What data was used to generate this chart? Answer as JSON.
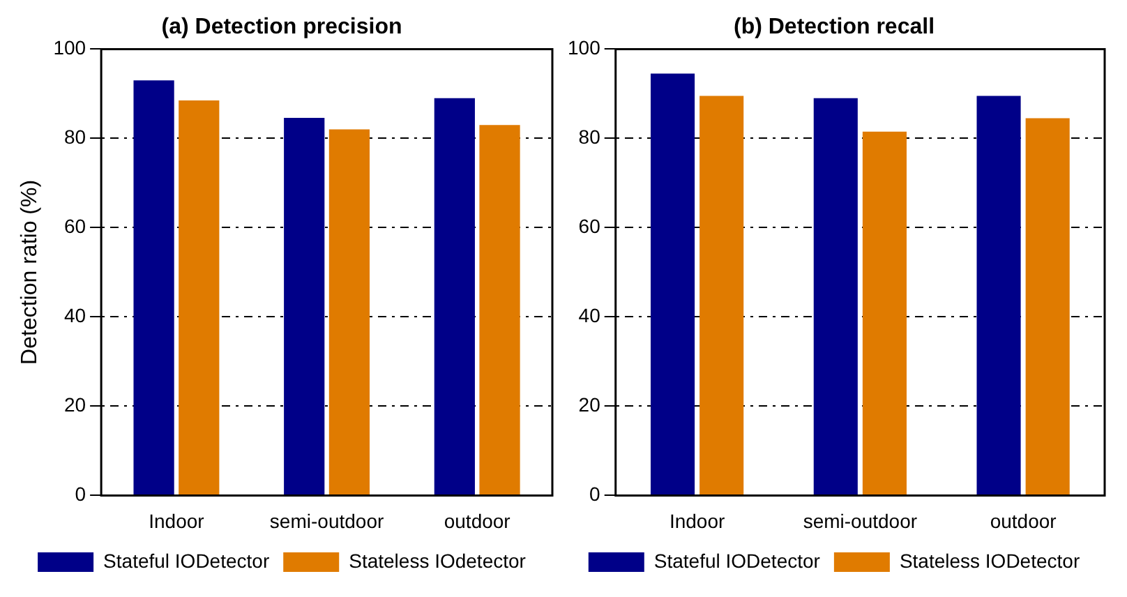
{
  "chart_data": [
    {
      "type": "bar",
      "title": "(a) Detection precision",
      "ylabel": "Detection ratio (%)",
      "categories": [
        "Indoor",
        "semi-outdoor",
        "outdoor"
      ],
      "series": [
        {
          "name": "Stateful IODetector",
          "color": "#000088",
          "values": [
            93,
            84.6,
            89
          ]
        },
        {
          "name": "Stateless IOdetector",
          "color": "#e07b00",
          "values": [
            88.5,
            82,
            83
          ]
        }
      ],
      "ylim": [
        0,
        100
      ],
      "yticks": [
        0,
        20,
        40,
        60,
        80,
        100
      ],
      "grid": "y",
      "legend": "bottom"
    },
    {
      "type": "bar",
      "title": "(b) Detection recall",
      "categories": [
        "Indoor",
        "semi-outdoor",
        "outdoor"
      ],
      "series": [
        {
          "name": "Stateful IODetector",
          "color": "#000088",
          "values": [
            94.5,
            89,
            89.5
          ]
        },
        {
          "name": "Stateless IODetector",
          "color": "#e07b00",
          "values": [
            89.5,
            81.5,
            84.5
          ]
        }
      ],
      "ylim": [
        0,
        100
      ],
      "yticks": [
        0,
        20,
        40,
        60,
        80,
        100
      ],
      "grid": "y",
      "legend": "bottom"
    }
  ]
}
